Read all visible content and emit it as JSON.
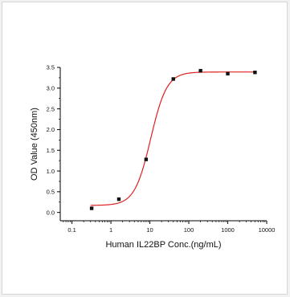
{
  "chart_data": {
    "type": "scatter",
    "title": "",
    "xlabel": "Human IL22BP Conc.(ng/mL)",
    "ylabel": "OD Value (450nm)",
    "x_scale": "log",
    "xlim": [
      0.05,
      10000
    ],
    "ylim": [
      -0.2,
      3.5
    ],
    "x_ticks": [
      0.1,
      1,
      10,
      100,
      1000,
      10000
    ],
    "x_tick_labels": [
      "0.1",
      "1",
      "10",
      "100",
      "1000",
      "10000"
    ],
    "y_ticks": [
      0.0,
      0.5,
      1.0,
      1.5,
      2.0,
      2.5,
      3.0,
      3.5
    ],
    "y_tick_labels": [
      "0.0",
      "0.5",
      "1.0",
      "1.5",
      "2.0",
      "2.5",
      "3.0",
      "3.5"
    ],
    "grid": false,
    "legend": "none",
    "series": [
      {
        "marker": "square",
        "color": "#111111",
        "x": [
          0.32,
          1.6,
          8,
          40,
          200,
          1000,
          5000
        ],
        "y": [
          0.1,
          0.32,
          1.28,
          3.22,
          3.42,
          3.35,
          3.38
        ]
      }
    ],
    "fit_curve": {
      "model": "4PL",
      "color": "#e02020",
      "bottom": 0.17,
      "top": 3.39,
      "ec50": 10.5,
      "hill": 2.1
    }
  }
}
